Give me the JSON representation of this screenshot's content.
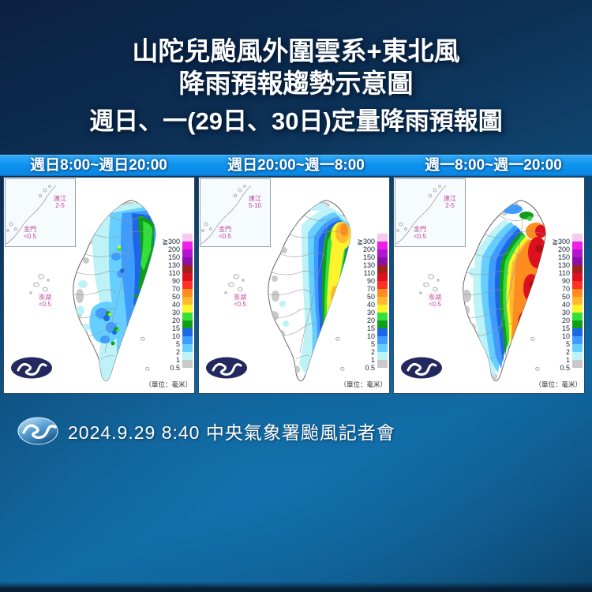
{
  "title": {
    "line1": "山陀兒颱風外圍雲系+東北風",
    "line2": "降雨預報趨勢示意圖",
    "line3": "週日、一(29日、30日)定量降雨預報圖"
  },
  "header_band": {
    "labels": [
      "週日8:00~週日20:00",
      "週日20:00~週一8:00",
      "週一8:00~週一20:00"
    ]
  },
  "panels": [
    {
      "period": "週日8:00~週日20:00",
      "lienchiang_label": "連江",
      "lienchiang_value": "2-5",
      "kinmen_label": "金門",
      "kinmen_value": "<0.5",
      "penghu_label": "澎湖",
      "penghu_value": "<0.5"
    },
    {
      "period": "週日20:00~週一8:00",
      "lienchiang_label": "連江",
      "lienchiang_value": "5-10",
      "kinmen_label": "金門",
      "kinmen_value": "<0.5",
      "penghu_label": "澎湖",
      "penghu_value": "<0.5"
    },
    {
      "period": "週一8:00~週一20:00",
      "lienchiang_label": "連江",
      "lienchiang_value": "2-5",
      "kinmen_label": "金門",
      "kinmen_value": "<0.5",
      "penghu_label": "澎湖",
      "penghu_value": "<0.5"
    }
  ],
  "legend": {
    "unit": "（單位：毫米）",
    "levels": [
      {
        "label": "≧300",
        "color": "#f8c8f0"
      },
      {
        "label": "200",
        "color": "#ee20e8"
      },
      {
        "label": "150",
        "color": "#b514cd"
      },
      {
        "label": "130",
        "color": "#8a10a8"
      },
      {
        "label": "110",
        "color": "#9e221c"
      },
      {
        "label": "90",
        "color": "#dd1020"
      },
      {
        "label": "70",
        "color": "#ff3028"
      },
      {
        "label": "50",
        "color": "#ff8c1f"
      },
      {
        "label": "40",
        "color": "#ffb92e"
      },
      {
        "label": "30",
        "color": "#fff42b"
      },
      {
        "label": "20",
        "color": "#33e03a"
      },
      {
        "label": "15",
        "color": "#0f9e1a"
      },
      {
        "label": "10",
        "color": "#1e66e8"
      },
      {
        "label": "5",
        "color": "#3e9bff"
      },
      {
        "label": "2",
        "color": "#66cfff"
      },
      {
        "label": "1",
        "color": "#bdf3f7"
      },
      {
        "label": "0.5",
        "color": "#c9c9c9"
      }
    ]
  },
  "footer": {
    "text": "2024.9.29  8:40  中央氣象署颱風記者會"
  }
}
